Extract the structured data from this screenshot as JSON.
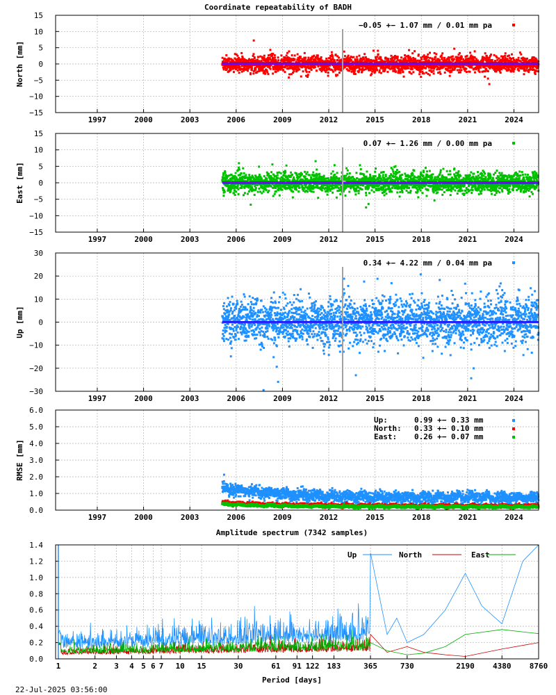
{
  "title": "Coordinate repeatability of BADH",
  "timestamp": "22-Jul-2025 03:56:00",
  "colors": {
    "north": "#ff0000",
    "east": "#00c000",
    "up": "#1e90ff",
    "trend": "#0000ff",
    "trend_inner": "#ff00ff",
    "grid": "#b0b0b0"
  },
  "chart_data": [
    {
      "id": "north",
      "type": "scatter",
      "ylabel": "North [mm]",
      "ylim": [
        -15,
        15
      ],
      "yticks": [
        "15",
        "10",
        "5",
        "0",
        "−5",
        "−10",
        "−15"
      ],
      "ytick_values": [
        15,
        10,
        5,
        0,
        -5,
        -10,
        -15
      ],
      "xticks": [
        "1997",
        "2000",
        "2003",
        "2006",
        "2009",
        "2012",
        "2015",
        "2018",
        "2021",
        "2024"
      ],
      "xtick_values": [
        1997,
        2000,
        2003,
        2006,
        2009,
        2012,
        2015,
        2018,
        2021,
        2024
      ],
      "xlim": [
        1994.3,
        2025.6
      ],
      "data_start": 2005.1,
      "data_end": 2025.6,
      "spread": 1.07,
      "offset": -0.05,
      "gap": 2012.9,
      "legend": "−0.05 +− 1.07 mm /  0.01 mm pa",
      "color": "#ff0000"
    },
    {
      "id": "east",
      "type": "scatter",
      "ylabel": "East [mm]",
      "ylim": [
        -15,
        15
      ],
      "yticks": [
        "15",
        "10",
        "5",
        "0",
        "−5",
        "−10",
        "−15"
      ],
      "ytick_values": [
        15,
        10,
        5,
        0,
        -5,
        -10,
        -15
      ],
      "xticks": [
        "1997",
        "2000",
        "2003",
        "2006",
        "2009",
        "2012",
        "2015",
        "2018",
        "2021",
        "2024"
      ],
      "xtick_values": [
        1997,
        2000,
        2003,
        2006,
        2009,
        2012,
        2015,
        2018,
        2021,
        2024
      ],
      "xlim": [
        1994.3,
        2025.6
      ],
      "data_start": 2005.1,
      "data_end": 2025.6,
      "spread": 1.26,
      "offset": 0.07,
      "gap": 2012.9,
      "legend": "0.07 +− 1.26 mm /  0.00 mm pa",
      "color": "#00c000"
    },
    {
      "id": "up",
      "type": "scatter",
      "ylabel": "Up [mm]",
      "ylim": [
        -30,
        30
      ],
      "yticks": [
        "30",
        "20",
        "10",
        "0",
        "−10",
        "−20",
        "−30"
      ],
      "ytick_values": [
        30,
        20,
        10,
        0,
        -10,
        -20,
        -30
      ],
      "xticks": [
        "1997",
        "2000",
        "2003",
        "2006",
        "2009",
        "2012",
        "2015",
        "2018",
        "2021",
        "2024"
      ],
      "xtick_values": [
        1997,
        2000,
        2003,
        2006,
        2009,
        2012,
        2015,
        2018,
        2021,
        2024
      ],
      "xlim": [
        1994.3,
        2025.6
      ],
      "data_start": 2005.1,
      "data_end": 2025.6,
      "spread": 4.22,
      "offset": 0.34,
      "gap": 2012.9,
      "legend": "0.34 +− 4.22 mm /  0.04 mm pa",
      "color": "#1e90ff"
    },
    {
      "id": "rmse",
      "type": "scatter",
      "ylabel": "RMSE [mm]",
      "ylim": [
        0,
        6
      ],
      "yticks": [
        "6.0",
        "5.0",
        "4.0",
        "3.0",
        "2.0",
        "1.0",
        "0.0"
      ],
      "ytick_values": [
        6,
        5,
        4,
        3,
        2,
        1,
        0
      ],
      "xticks": [
        "1997",
        "2000",
        "2003",
        "2006",
        "2009",
        "2012",
        "2015",
        "2018",
        "2021",
        "2024"
      ],
      "xtick_values": [
        1997,
        2000,
        2003,
        2006,
        2009,
        2012,
        2015,
        2018,
        2021,
        2024
      ],
      "xlim": [
        1994.3,
        2025.6
      ],
      "data_start": 2005.1,
      "data_end": 2025.6,
      "series": [
        {
          "name": "Up:",
          "value": "0.99 +− 0.33 mm",
          "mean": 0.99,
          "sd": 0.33,
          "color": "#1e90ff"
        },
        {
          "name": "North:",
          "value": "0.33 +− 0.10 mm",
          "mean": 0.33,
          "sd": 0.1,
          "color": "#ff0000"
        },
        {
          "name": "East:",
          "value": "0.26 +− 0.07 mm",
          "mean": 0.26,
          "sd": 0.07,
          "color": "#00c000"
        }
      ]
    },
    {
      "id": "spectrum",
      "type": "line",
      "title": "Amplitude spectrum (7342 samples)",
      "xlabel": "Period [days]",
      "ylim": [
        0,
        1.4
      ],
      "xscale": "log",
      "xlim": [
        0.95,
        8760
      ],
      "yticks": [
        "1.4",
        "1.2",
        "1.0",
        "0.8",
        "0.6",
        "0.4",
        "0.2",
        "0.0"
      ],
      "ytick_values": [
        1.4,
        1.2,
        1.0,
        0.8,
        0.6,
        0.4,
        0.2,
        0
      ],
      "xticks": [
        "1",
        "2",
        "3",
        "4",
        "5",
        "6",
        "7",
        "10",
        "15",
        "30",
        "61",
        "91",
        "122",
        "183",
        "365",
        "730",
        "2190",
        "4380",
        "8760"
      ],
      "xtick_values": [
        1,
        2,
        3,
        4,
        5,
        6,
        7,
        10,
        15,
        30,
        61,
        91,
        122,
        183,
        365,
        730,
        2190,
        4380,
        8760
      ],
      "series": [
        {
          "name": "Up",
          "color": "#1e90ff",
          "peaks": {
            "periods": [
              365,
              500,
              600,
              730,
              1000,
              1500,
              2190,
              3000,
              4380,
              6500,
              8760
            ],
            "values": [
              1.3,
              0.3,
              0.5,
              0.2,
              0.3,
              0.6,
              1.05,
              0.65,
              0.43,
              1.2,
              1.4
            ]
          }
        },
        {
          "name": "North",
          "color": "#cc0000",
          "peaks": {
            "periods": [
              365,
              500,
              730,
              1000,
              1500,
              2190,
              4380,
              8760
            ],
            "values": [
              0.3,
              0.08,
              0.15,
              0.08,
              0.05,
              0.03,
              0.12,
              0.2
            ]
          }
        },
        {
          "name": "East",
          "color": "#00b000",
          "peaks": {
            "periods": [
              365,
              500,
              730,
              1000,
              1500,
              2190,
              4380,
              8760
            ],
            "values": [
              0.2,
              0.1,
              0.05,
              0.07,
              0.15,
              0.3,
              0.36,
              0.31
            ]
          }
        }
      ]
    }
  ]
}
